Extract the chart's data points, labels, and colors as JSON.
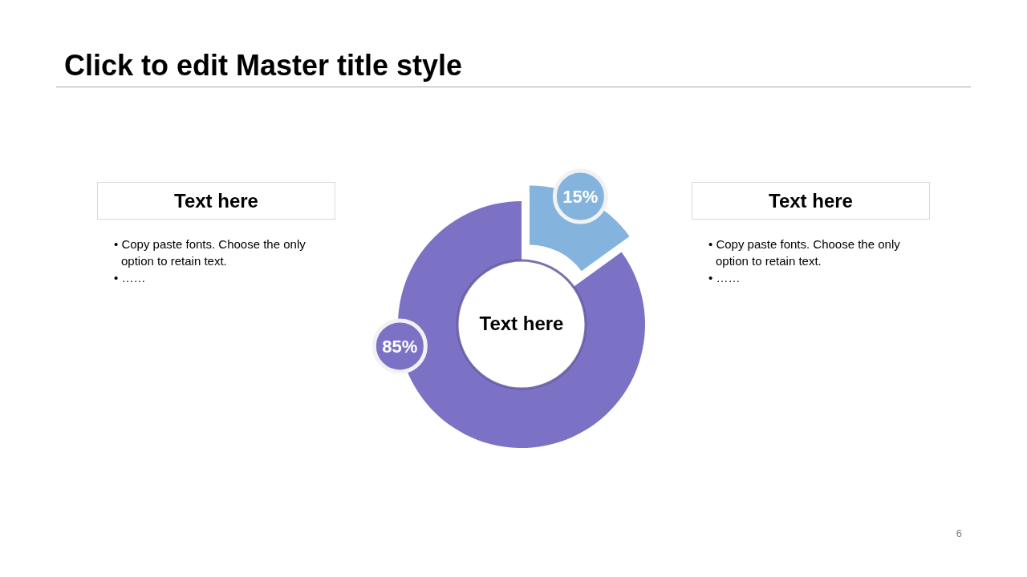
{
  "chart_data": [
    {
      "type": "other",
      "title": "Text here",
      "annotations": [
        "• Copy paste fonts. Choose the only option to retain text.",
        "• ……"
      ]
    },
    {
      "type": "donut",
      "title": "Click to edit Master title style",
      "categories": [
        null,
        null
      ],
      "values": [
        15,
        85
      ],
      "colors": [
        "#84b3dd",
        "#7b72c6"
      ],
      "value_labels": [
        "15%",
        "85%"
      ],
      "annotations": [
        "Text here",
        "6"
      ]
    },
    {
      "type": "other",
      "title": "Text here",
      "annotations": [
        "• Copy paste fonts. Choose the only option to retain text.",
        "• ……"
      ]
    }
  ]
}
